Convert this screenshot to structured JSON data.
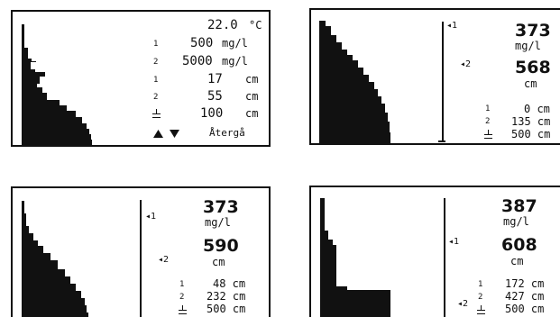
{
  "screen1": {
    "temperature": "22.0",
    "temperature_unit": "°C",
    "rows": [
      {
        "index": "1",
        "value": "500",
        "unit": "mg/l"
      },
      {
        "index": "2",
        "value": "5000",
        "unit": "mg/l"
      },
      {
        "index": "1",
        "value": "17",
        "unit": "cm"
      },
      {
        "index": "2",
        "value": "55",
        "unit": "cm"
      },
      {
        "index": "",
        "value": "100",
        "unit": "cm"
      }
    ],
    "back_label": "Återgå"
  },
  "screen2": {
    "marker1": "◂1",
    "marker2": "◂2",
    "value1": "373",
    "unit1": "mg/l",
    "value2": "568",
    "unit2": "cm",
    "rows": [
      {
        "index": "1",
        "value": "0 cm"
      },
      {
        "index": "2",
        "value": "135 cm"
      },
      {
        "index": "",
        "value": "500 cm"
      }
    ]
  },
  "screen3": {
    "marker1": "◂1",
    "marker2": "◂2",
    "value1": "373",
    "unit1": "mg/l",
    "value2": "590",
    "unit2": "cm",
    "rows": [
      {
        "index": "1",
        "value": "48 cm"
      },
      {
        "index": "2",
        "value": "232 cm"
      },
      {
        "index": "",
        "value": "500 cm"
      }
    ]
  },
  "screen4": {
    "marker1": "◂1",
    "marker2": "◂2",
    "value1": "387",
    "unit1": "mg/l",
    "value2": "608",
    "unit2": "cm",
    "rows": [
      {
        "index": "1",
        "value": "172 cm"
      },
      {
        "index": "2",
        "value": "427 cm"
      },
      {
        "index": "",
        "value": "500 cm"
      }
    ]
  },
  "icons": {
    "up": "triangle-up-icon",
    "down": "triangle-down-icon",
    "ground": "ground-symbol-icon"
  }
}
